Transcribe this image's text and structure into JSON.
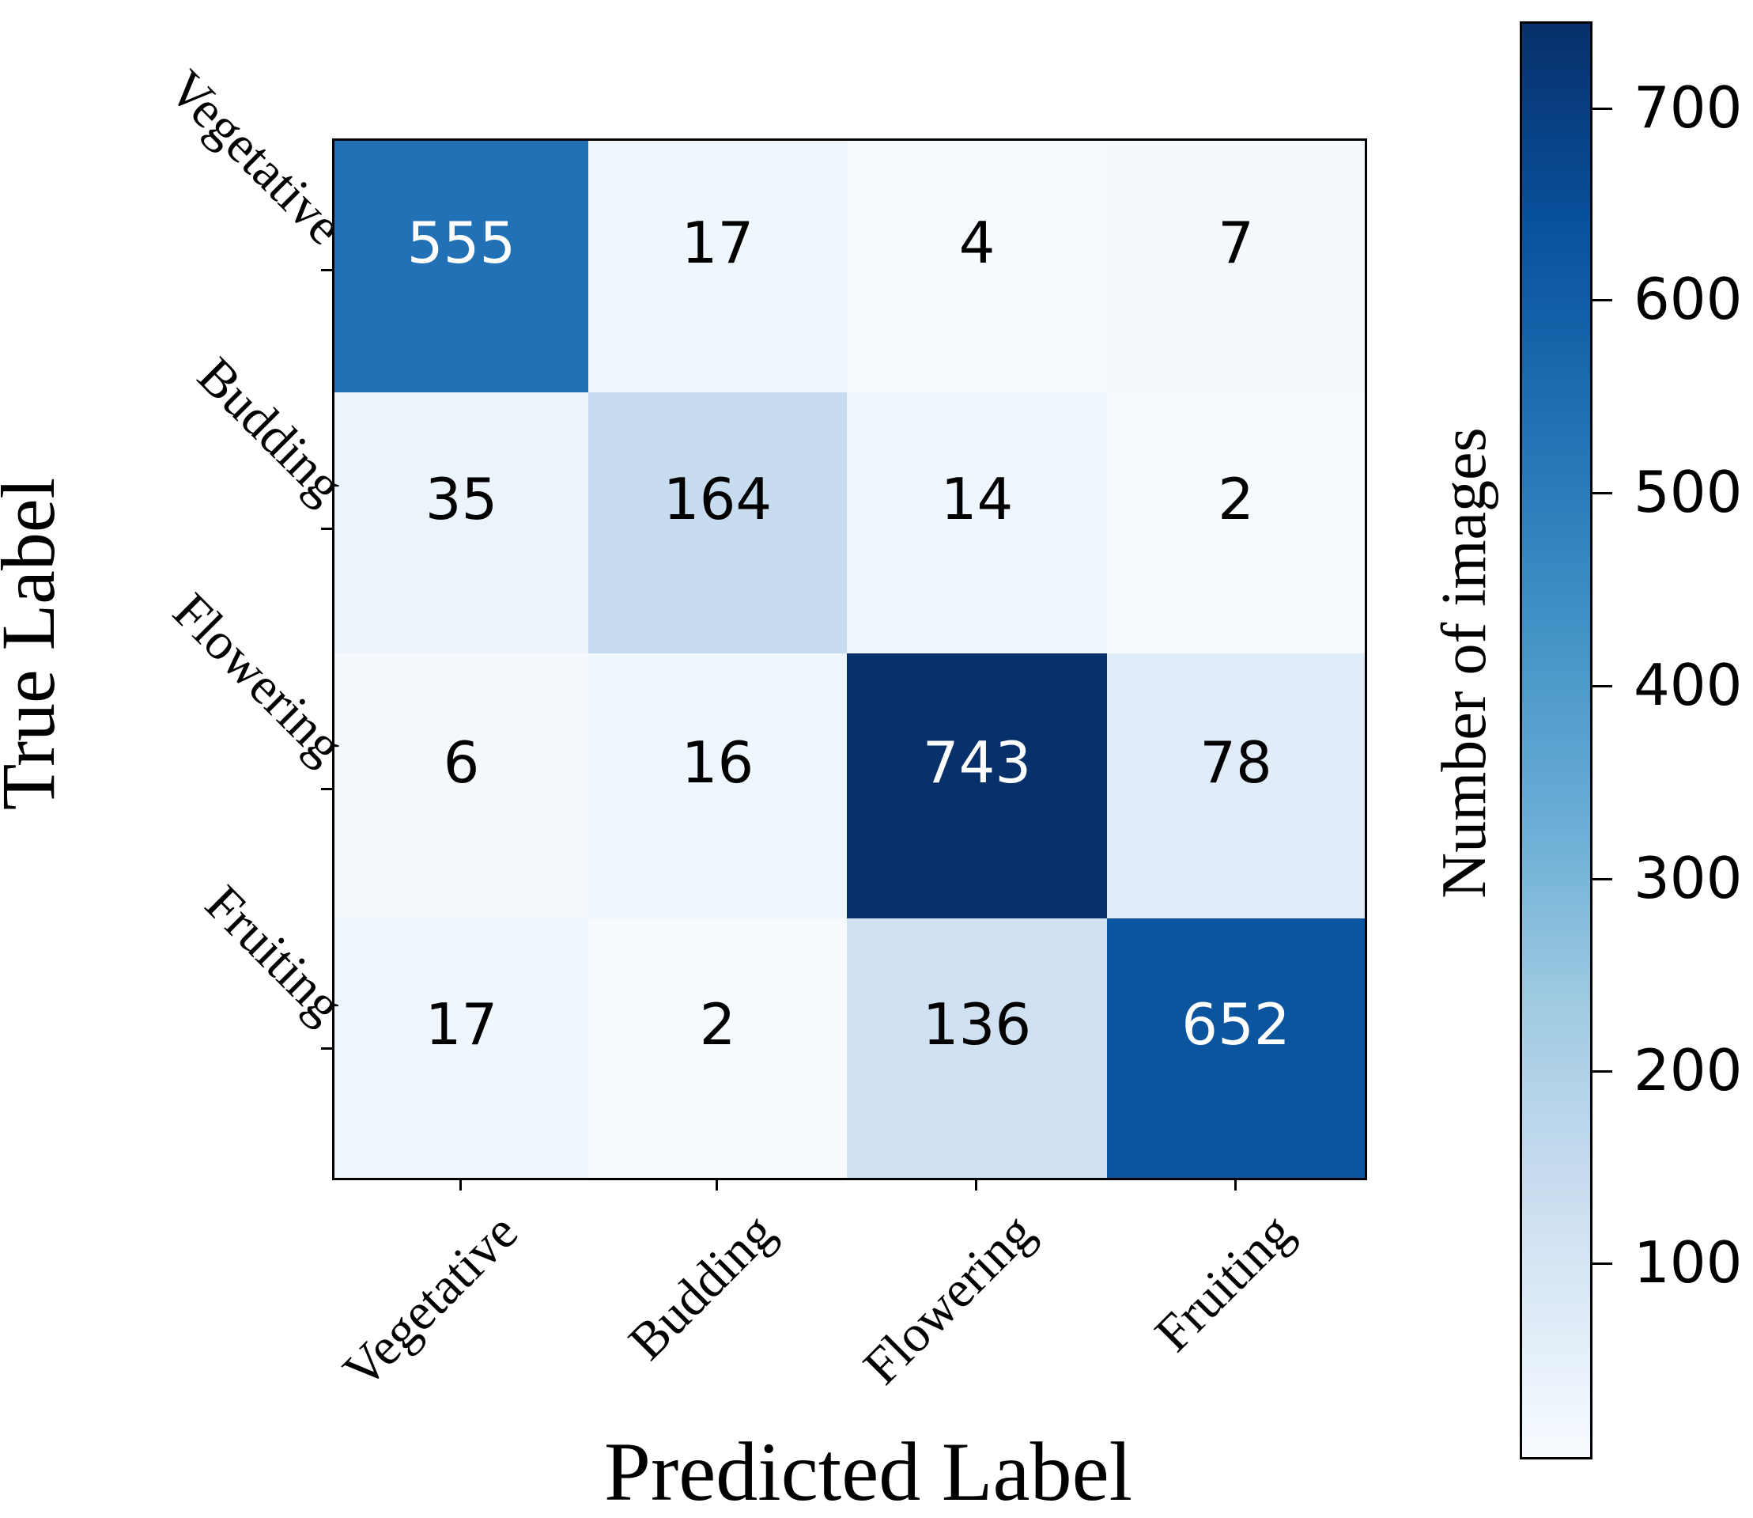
{
  "chart_data": {
    "type": "heatmap",
    "title": "",
    "xlabel": "Predicted Label",
    "ylabel": "True Label",
    "x_categories": [
      "Vegetative",
      "Budding",
      "Flowering",
      "Fruiting"
    ],
    "y_categories": [
      "Vegetative",
      "Budding",
      "Flowering",
      "Fruiting"
    ],
    "values": [
      [
        555,
        17,
        4,
        7
      ],
      [
        35,
        164,
        14,
        2
      ],
      [
        6,
        16,
        743,
        78
      ],
      [
        17,
        2,
        136,
        652
      ]
    ],
    "colormap": "Blues",
    "colorbar": {
      "label": "Number of images",
      "ticks": [
        100,
        200,
        300,
        400,
        500,
        600,
        700
      ],
      "range": [
        2,
        743
      ]
    },
    "grid": false,
    "legend": "colorbar right"
  },
  "axes": {
    "xlabel": "Predicted Label",
    "ylabel": "True Label",
    "xticks": [
      "Vegetative",
      "Budding",
      "Flowering",
      "Fruiting"
    ],
    "yticks": [
      "Vegetative",
      "Budding",
      "Flowering",
      "Fruiting"
    ]
  },
  "cells": [
    [
      {
        "v": "555",
        "bg": "#2270b5",
        "fg": "#ffffff"
      },
      {
        "v": "17",
        "bg": "#eff6fc",
        "fg": "#000000"
      },
      {
        "v": "4",
        "bg": "#f6faff",
        "fg": "#000000"
      },
      {
        "v": "7",
        "bg": "#f5f9fe",
        "fg": "#000000"
      }
    ],
    [
      {
        "v": "35",
        "bg": "#ebf3fb",
        "fg": "#000000"
      },
      {
        "v": "164",
        "bg": "#c8dcf0",
        "fg": "#000000"
      },
      {
        "v": "14",
        "bg": "#f0f6fd",
        "fg": "#000000"
      },
      {
        "v": "2",
        "bg": "#f7fbff",
        "fg": "#000000"
      }
    ],
    [
      {
        "v": "6",
        "bg": "#f5f9fe",
        "fg": "#000000"
      },
      {
        "v": "16",
        "bg": "#f0f6fd",
        "fg": "#000000"
      },
      {
        "v": "743",
        "bg": "#08306b",
        "fg": "#ffffff"
      },
      {
        "v": "78",
        "bg": "#e0ecf8",
        "fg": "#000000"
      }
    ],
    [
      {
        "v": "17",
        "bg": "#eff6fc",
        "fg": "#000000"
      },
      {
        "v": "2",
        "bg": "#f7fbff",
        "fg": "#000000"
      },
      {
        "v": "136",
        "bg": "#d0e1f2",
        "fg": "#000000"
      },
      {
        "v": "652",
        "bg": "#0b549e",
        "fg": "#ffffff"
      }
    ]
  ],
  "colorbar": {
    "label": "Number of images",
    "ticks": [
      "700",
      "600",
      "500",
      "400",
      "300",
      "200",
      "100"
    ],
    "gradient_top": "#08306b",
    "gradient_bottom": "#f7fbff"
  }
}
